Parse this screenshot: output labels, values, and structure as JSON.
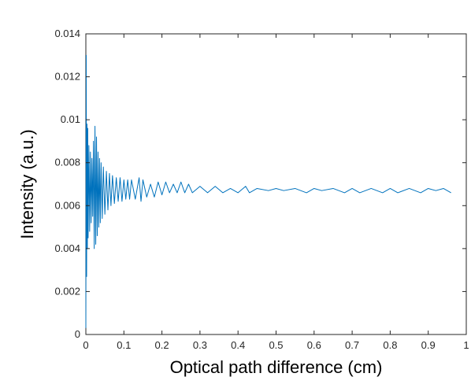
{
  "chart_data": {
    "type": "line",
    "title": "",
    "xlabel": "Optical path difference (cm)",
    "ylabel": "Intensity (a.u.)",
    "xlim": [
      0,
      1
    ],
    "ylim": [
      0,
      0.014
    ],
    "xticks": [
      0,
      0.1,
      0.2,
      0.3,
      0.4,
      0.5,
      0.6,
      0.7,
      0.8,
      0.9,
      1
    ],
    "xtick_labels": [
      "0",
      "0.1",
      "0.2",
      "0.3",
      "0.4",
      "0.5",
      "0.6",
      "0.7",
      "0.8",
      "0.9",
      "1"
    ],
    "yticks": [
      0,
      0.002,
      0.004,
      0.006,
      0.008,
      0.01,
      0.012,
      0.014
    ],
    "ytick_labels": [
      "0",
      "0.002",
      "0.004",
      "0.006",
      "0.008",
      "0.01",
      "0.012",
      "0.014"
    ],
    "grid": false,
    "box": true,
    "series": [
      {
        "color": "#0072BD",
        "x": [
          0,
          0.001,
          0.002,
          0.003,
          0.004,
          0.005,
          0.006,
          0.008,
          0.01,
          0.012,
          0.014,
          0.016,
          0.018,
          0.02,
          0.022,
          0.024,
          0.026,
          0.028,
          0.03,
          0.032,
          0.034,
          0.036,
          0.038,
          0.04,
          0.043,
          0.046,
          0.05,
          0.054,
          0.058,
          0.062,
          0.066,
          0.07,
          0.075,
          0.08,
          0.085,
          0.09,
          0.095,
          0.1,
          0.105,
          0.11,
          0.115,
          0.12,
          0.13,
          0.14,
          0.145,
          0.15,
          0.16,
          0.17,
          0.18,
          0.19,
          0.2,
          0.21,
          0.22,
          0.23,
          0.24,
          0.25,
          0.26,
          0.27,
          0.28,
          0.3,
          0.32,
          0.34,
          0.36,
          0.38,
          0.4,
          0.42,
          0.43,
          0.45,
          0.48,
          0.5,
          0.52,
          0.55,
          0.58,
          0.6,
          0.62,
          0.65,
          0.68,
          0.7,
          0.72,
          0.75,
          0.78,
          0.8,
          0.82,
          0.85,
          0.88,
          0.9,
          0.92,
          0.94,
          0.96
        ],
        "y": [
          0.0003,
          0.013,
          0.0027,
          0.0098,
          0.004,
          0.0096,
          0.0045,
          0.0088,
          0.0048,
          0.0085,
          0.0052,
          0.0082,
          0.0055,
          0.009,
          0.004,
          0.0097,
          0.0042,
          0.0092,
          0.0046,
          0.0085,
          0.005,
          0.0082,
          0.0052,
          0.008,
          0.0054,
          0.0078,
          0.0056,
          0.0076,
          0.0058,
          0.0075,
          0.006,
          0.0074,
          0.0061,
          0.0073,
          0.0062,
          0.0073,
          0.0062,
          0.0072,
          0.0063,
          0.0072,
          0.0063,
          0.0072,
          0.0063,
          0.0073,
          0.0062,
          0.0072,
          0.0064,
          0.007,
          0.0064,
          0.0071,
          0.0065,
          0.0071,
          0.0066,
          0.007,
          0.0066,
          0.0071,
          0.0066,
          0.007,
          0.0066,
          0.0069,
          0.0066,
          0.0069,
          0.0066,
          0.0068,
          0.0066,
          0.0069,
          0.0066,
          0.0068,
          0.0067,
          0.0068,
          0.0067,
          0.0068,
          0.0066,
          0.0068,
          0.0067,
          0.0068,
          0.0066,
          0.0068,
          0.0066,
          0.0068,
          0.0066,
          0.0068,
          0.0066,
          0.0068,
          0.0066,
          0.0068,
          0.0067,
          0.0068,
          0.0066
        ]
      }
    ]
  }
}
